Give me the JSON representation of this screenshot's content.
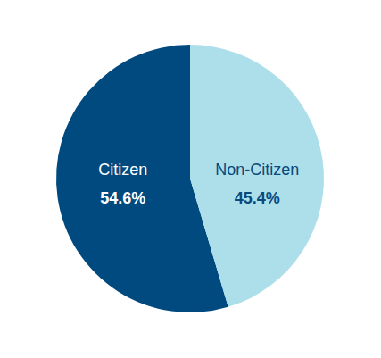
{
  "chart_data": {
    "type": "pie",
    "categories": [
      "Citizen",
      "Non-Citizen"
    ],
    "values": [
      54.6,
      45.4
    ],
    "value_labels": [
      "54.6%",
      "45.4%"
    ],
    "colors": [
      "#004a7f",
      "#addfea"
    ],
    "data_labels": true
  }
}
